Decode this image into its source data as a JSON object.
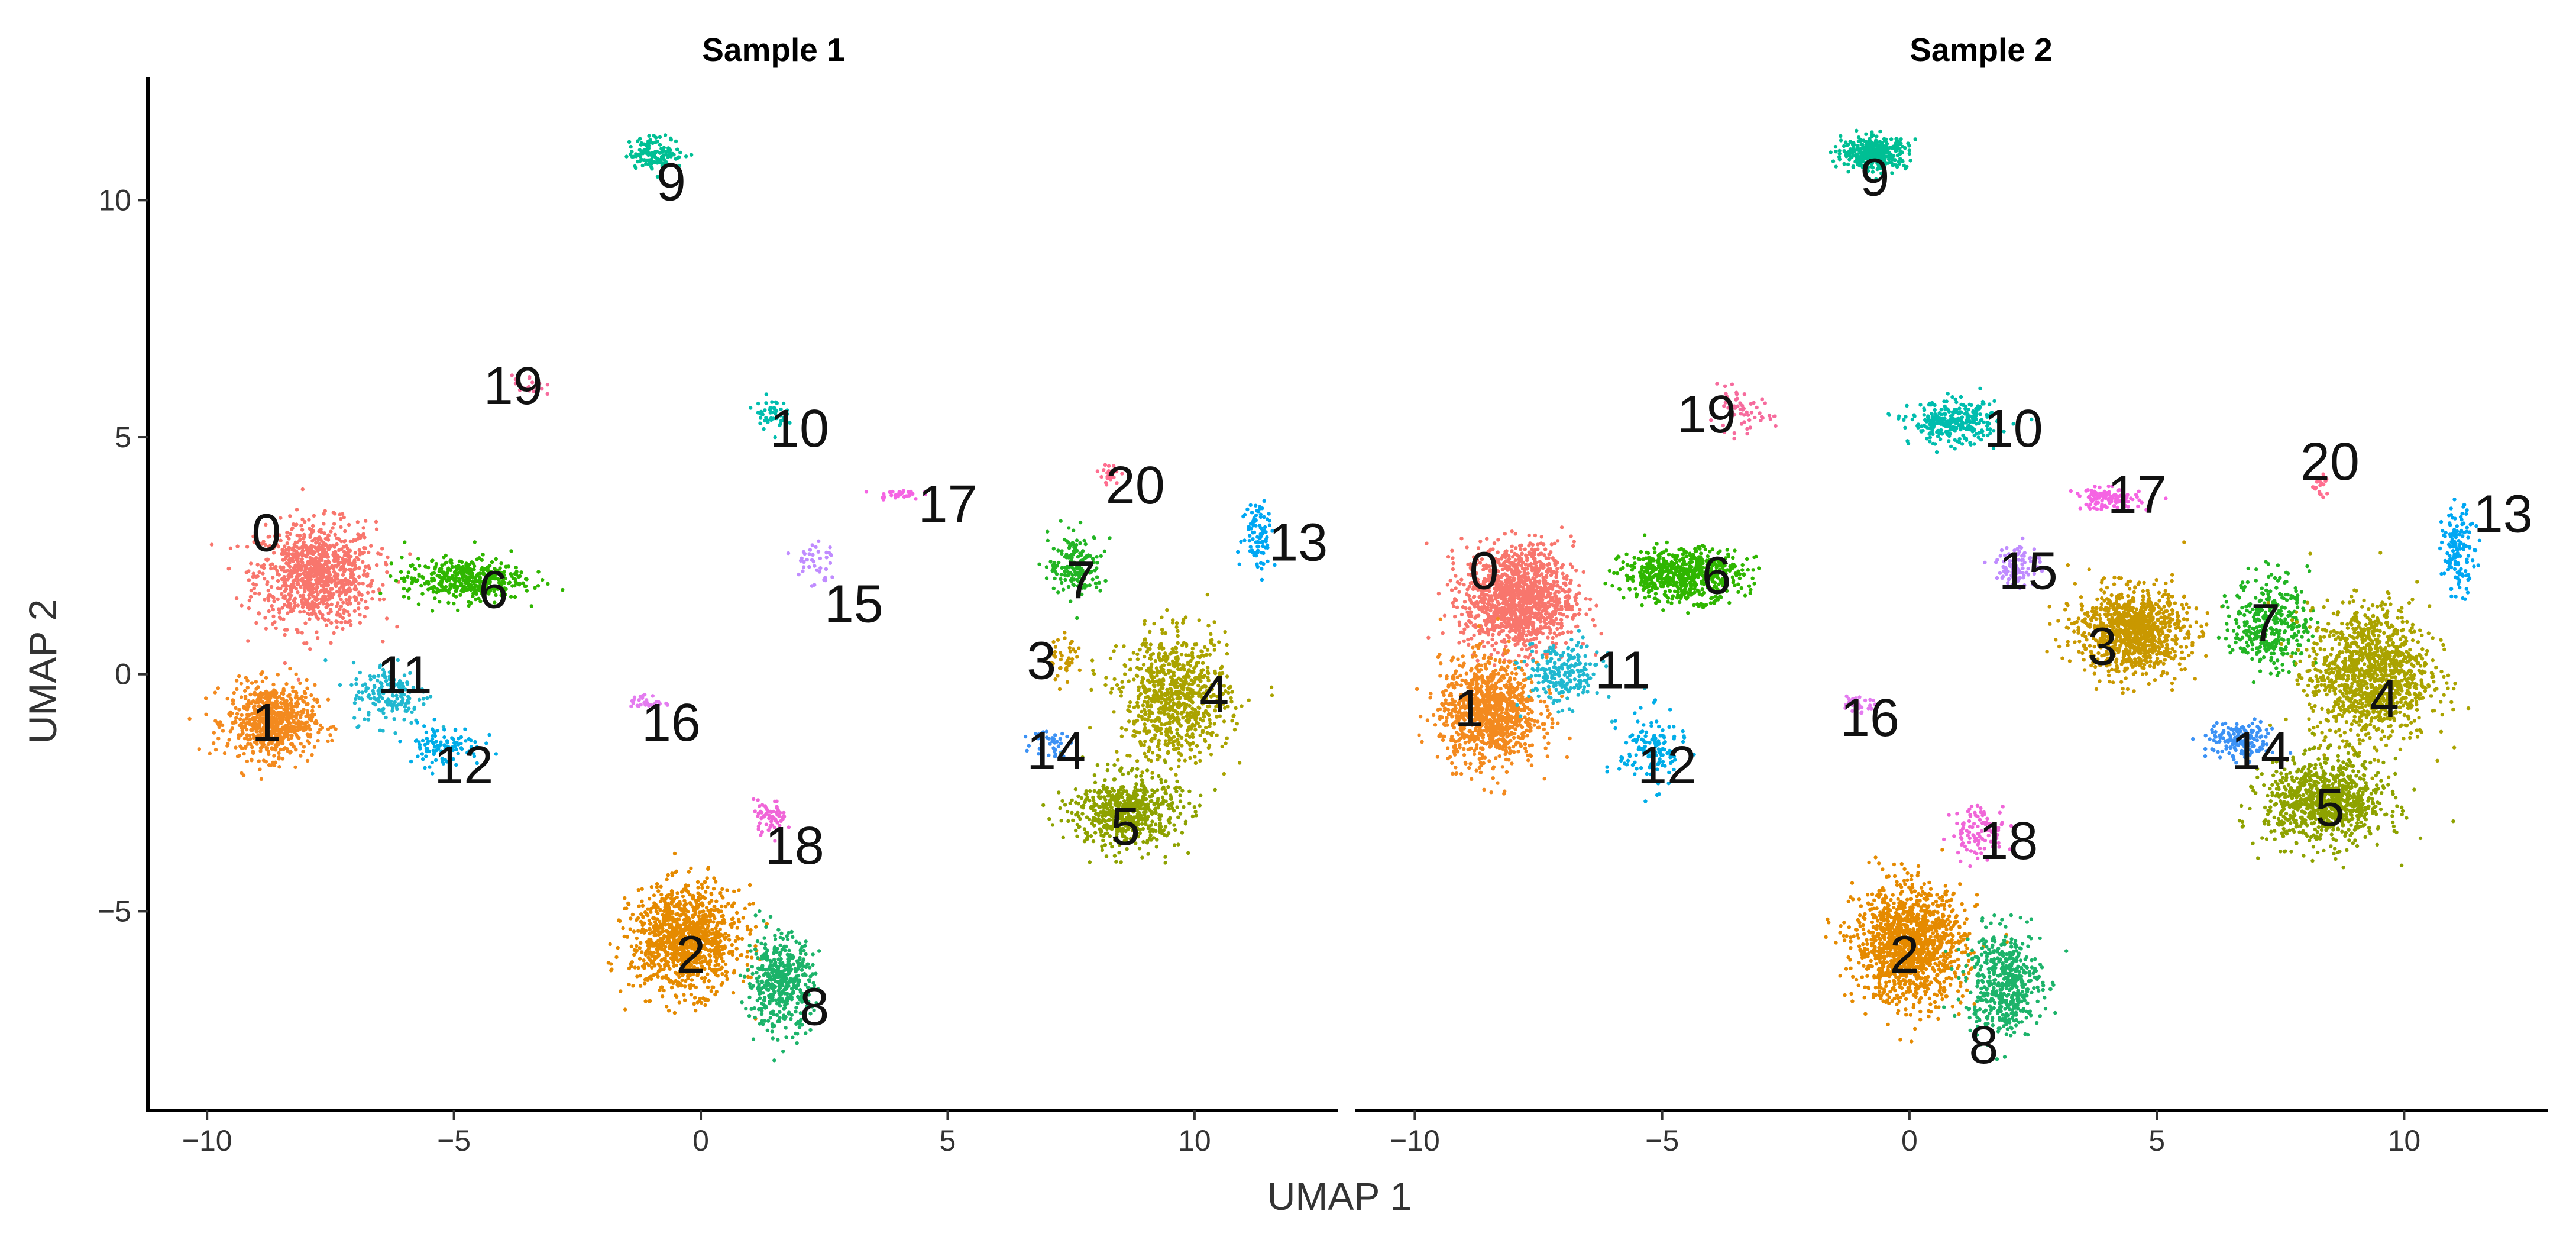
{
  "chart_data": {
    "type": "scatter",
    "xlabel": "UMAP 1",
    "ylabel": "UMAP 2",
    "xlim": [
      -11.2,
      12.9
    ],
    "ylim": [
      -9.2,
      12.6
    ],
    "xticks": [
      -10,
      -5,
      0,
      5,
      10
    ],
    "yticks": [
      -5,
      0,
      5,
      10
    ],
    "xtick_labels": [
      "−10",
      "−5",
      "0",
      "5",
      "10"
    ],
    "ytick_labels": [
      "−5",
      "0",
      "5",
      "10"
    ],
    "cluster_colors": {
      "0": "#F8766D",
      "1": "#F38A1F",
      "2": "#E58A00",
      "3": "#C99800",
      "4": "#AAA300",
      "5": "#8EA200",
      "6": "#2FB600",
      "7": "#22B524",
      "8": "#1CB36A",
      "9": "#00BF94",
      "10": "#00BDAE",
      "11": "#21B8D0",
      "12": "#00ADE8",
      "13": "#00A7F3",
      "14": "#3C92F5",
      "15": "#C08CFF",
      "16": "#E47CF0",
      "17": "#F564E3",
      "18": "#F066D8",
      "19": "#F66B9D",
      "20": "#FF6E90"
    },
    "panels": [
      {
        "title": "Sample 1",
        "clusters": [
          {
            "id": "0",
            "label": "0",
            "x": -7.8,
            "y": 2.1,
            "sx": 1.1,
            "sy": 1.0,
            "n": 950,
            "lx": -8.8,
            "ly": 3.0
          },
          {
            "id": "1",
            "label": "1",
            "x": -8.7,
            "y": -1.0,
            "sx": 0.8,
            "sy": 0.7,
            "n": 700,
            "lx": -8.8,
            "ly": -1.0
          },
          {
            "id": "11",
            "label": "11",
            "x": -6.3,
            "y": -0.4,
            "sx": 0.7,
            "sy": 0.6,
            "n": 170,
            "lx": -6.0,
            "ly": 0.0
          },
          {
            "id": "12",
            "label": "12",
            "x": -5.2,
            "y": -1.5,
            "sx": 0.7,
            "sy": 0.4,
            "n": 110,
            "lx": -4.8,
            "ly": -1.9
          },
          {
            "id": "6",
            "label": "6",
            "x": -4.8,
            "y": 2.0,
            "sx": 1.1,
            "sy": 0.4,
            "n": 420,
            "lx": -4.2,
            "ly": 1.8
          },
          {
            "id": "19",
            "label": "19",
            "x": -3.5,
            "y": 6.1,
            "sx": 0.3,
            "sy": 0.2,
            "n": 20,
            "lx": -3.8,
            "ly": 6.1
          },
          {
            "id": "9",
            "label": "9",
            "x": -0.9,
            "y": 11.0,
            "sx": 0.5,
            "sy": 0.3,
            "n": 140,
            "lx": -0.6,
            "ly": 10.4
          },
          {
            "id": "10",
            "label": "10",
            "x": 1.4,
            "y": 5.5,
            "sx": 0.3,
            "sy": 0.3,
            "n": 50,
            "lx": 2.0,
            "ly": 5.2
          },
          {
            "id": "17",
            "label": "17",
            "x": 4.0,
            "y": 3.8,
            "sx": 0.4,
            "sy": 0.1,
            "n": 30,
            "lx": 5.0,
            "ly": 3.6
          },
          {
            "id": "15",
            "label": "15",
            "x": 2.3,
            "y": 2.4,
            "sx": 0.4,
            "sy": 0.5,
            "n": 40,
            "lx": 3.1,
            "ly": 1.5
          },
          {
            "id": "16",
            "label": "16",
            "x": -1.1,
            "y": -0.6,
            "sx": 0.3,
            "sy": 0.15,
            "n": 30,
            "lx": -0.6,
            "ly": -1.0
          },
          {
            "id": "18",
            "label": "18",
            "x": 1.4,
            "y": -3.0,
            "sx": 0.3,
            "sy": 0.3,
            "n": 60,
            "lx": 1.9,
            "ly": -3.6
          },
          {
            "id": "2",
            "label": "2",
            "x": -0.3,
            "y": -5.6,
            "sx": 1.0,
            "sy": 1.0,
            "n": 1100,
            "lx": -0.2,
            "ly": -5.9
          },
          {
            "id": "8",
            "label": "8",
            "x": 1.6,
            "y": -6.5,
            "sx": 0.6,
            "sy": 0.9,
            "n": 450,
            "lx": 2.3,
            "ly": -7.0
          },
          {
            "id": "20",
            "label": "20",
            "x": 8.3,
            "y": 4.2,
            "sx": 0.2,
            "sy": 0.2,
            "n": 25,
            "lx": 8.8,
            "ly": 4.0
          },
          {
            "id": "13",
            "label": "13",
            "x": 11.3,
            "y": 3.0,
            "sx": 0.3,
            "sy": 0.7,
            "n": 90,
            "lx": 12.1,
            "ly": 2.8
          },
          {
            "id": "7",
            "label": "7",
            "x": 7.6,
            "y": 2.3,
            "sx": 0.5,
            "sy": 0.6,
            "n": 170,
            "lx": 7.7,
            "ly": 2.0
          },
          {
            "id": "3",
            "label": "3",
            "x": 7.4,
            "y": 0.3,
            "sx": 0.3,
            "sy": 0.4,
            "n": 40,
            "lx": 6.9,
            "ly": 0.3
          },
          {
            "id": "4",
            "label": "4",
            "x": 9.6,
            "y": -0.5,
            "sx": 1.0,
            "sy": 1.2,
            "n": 800,
            "lx": 10.4,
            "ly": -0.4
          },
          {
            "id": "14",
            "label": "14",
            "x": 7.1,
            "y": -1.4,
            "sx": 0.35,
            "sy": 0.3,
            "n": 45,
            "lx": 7.2,
            "ly": -1.6
          },
          {
            "id": "5",
            "label": "5",
            "x": 8.6,
            "y": -2.9,
            "sx": 1.0,
            "sy": 0.7,
            "n": 600,
            "lx": 8.6,
            "ly": -3.2
          }
        ]
      },
      {
        "title": "Sample 2",
        "clusters": [
          {
            "id": "0",
            "label": "0",
            "x": -7.9,
            "y": 1.6,
            "sx": 1.0,
            "sy": 1.0,
            "n": 1300,
            "lx": -8.6,
            "ly": 2.2
          },
          {
            "id": "1",
            "label": "1",
            "x": -8.5,
            "y": -0.8,
            "sx": 0.9,
            "sy": 1.0,
            "n": 1000,
            "lx": -8.9,
            "ly": -0.7
          },
          {
            "id": "11",
            "label": "11",
            "x": -7.0,
            "y": 0.0,
            "sx": 0.7,
            "sy": 0.6,
            "n": 220,
            "lx": -5.8,
            "ly": 0.1
          },
          {
            "id": "12",
            "label": "12",
            "x": -5.2,
            "y": -1.6,
            "sx": 0.6,
            "sy": 0.7,
            "n": 140,
            "lx": -4.9,
            "ly": -1.9
          },
          {
            "id": "6",
            "label": "6",
            "x": -4.6,
            "y": 2.1,
            "sx": 1.1,
            "sy": 0.5,
            "n": 650,
            "lx": -3.9,
            "ly": 2.1
          },
          {
            "id": "19",
            "label": "19",
            "x": -3.4,
            "y": 5.5,
            "sx": 0.6,
            "sy": 0.4,
            "n": 60,
            "lx": -4.1,
            "ly": 5.5
          },
          {
            "id": "9",
            "label": "9",
            "x": -0.7,
            "y": 11.0,
            "sx": 0.6,
            "sy": 0.3,
            "n": 400,
            "lx": -0.7,
            "ly": 10.5
          },
          {
            "id": "10",
            "label": "10",
            "x": 0.9,
            "y": 5.3,
            "sx": 0.8,
            "sy": 0.4,
            "n": 300,
            "lx": 2.1,
            "ly": 5.2
          },
          {
            "id": "17",
            "label": "17",
            "x": 4.0,
            "y": 3.7,
            "sx": 0.6,
            "sy": 0.2,
            "n": 120,
            "lx": 4.6,
            "ly": 3.8
          },
          {
            "id": "15",
            "label": "15",
            "x": 2.2,
            "y": 2.3,
            "sx": 0.4,
            "sy": 0.4,
            "n": 100,
            "lx": 2.4,
            "ly": 2.2
          },
          {
            "id": "16",
            "label": "16",
            "x": -1.0,
            "y": -0.6,
            "sx": 0.3,
            "sy": 0.2,
            "n": 30,
            "lx": -0.8,
            "ly": -0.9
          },
          {
            "id": "3",
            "label": "3",
            "x": 4.5,
            "y": 0.9,
            "sx": 1.0,
            "sy": 0.8,
            "n": 1000,
            "lx": 3.9,
            "ly": 0.6
          },
          {
            "id": "7",
            "label": "7",
            "x": 7.3,
            "y": 1.1,
            "sx": 0.7,
            "sy": 0.9,
            "n": 350,
            "lx": 7.2,
            "ly": 1.1
          },
          {
            "id": "14",
            "label": "14",
            "x": 6.7,
            "y": -1.4,
            "sx": 0.6,
            "sy": 0.35,
            "n": 160,
            "lx": 7.1,
            "ly": -1.6
          },
          {
            "id": "4",
            "label": "4",
            "x": 9.3,
            "y": 0.0,
            "sx": 1.1,
            "sy": 1.3,
            "n": 1200,
            "lx": 9.6,
            "ly": -0.5
          },
          {
            "id": "5",
            "label": "5",
            "x": 8.4,
            "y": -2.7,
            "sx": 1.1,
            "sy": 0.8,
            "n": 900,
            "lx": 8.5,
            "ly": -2.8
          },
          {
            "id": "20",
            "label": "20",
            "x": 8.3,
            "y": 4.0,
            "sx": 0.2,
            "sy": 0.2,
            "n": 20,
            "lx": 8.5,
            "ly": 4.5
          },
          {
            "id": "13",
            "label": "13",
            "x": 11.1,
            "y": 2.6,
            "sx": 0.3,
            "sy": 0.8,
            "n": 140,
            "lx": 12.0,
            "ly": 3.4
          },
          {
            "id": "18",
            "label": "18",
            "x": 1.4,
            "y": -3.3,
            "sx": 0.5,
            "sy": 0.5,
            "n": 100,
            "lx": 2.0,
            "ly": -3.5
          },
          {
            "id": "2",
            "label": "2",
            "x": 0.0,
            "y": -5.7,
            "sx": 1.0,
            "sy": 1.1,
            "n": 1300,
            "lx": -0.1,
            "ly": -5.9
          },
          {
            "id": "8",
            "label": "8",
            "x": 1.9,
            "y": -6.5,
            "sx": 0.7,
            "sy": 1.0,
            "n": 500,
            "lx": 1.5,
            "ly": -7.8
          }
        ]
      }
    ]
  }
}
